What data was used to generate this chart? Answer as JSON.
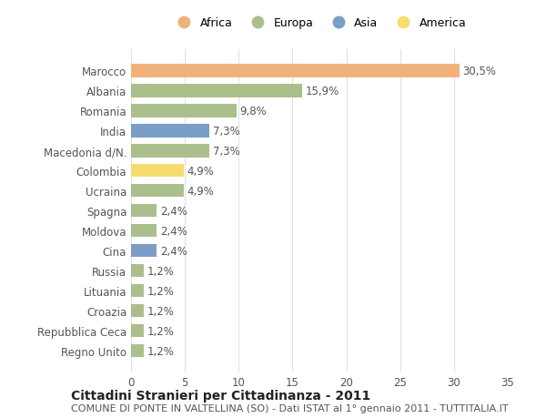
{
  "countries": [
    "Marocco",
    "Albania",
    "Romania",
    "India",
    "Macedonia d/N.",
    "Colombia",
    "Ucraina",
    "Spagna",
    "Moldova",
    "Cina",
    "Russia",
    "Lituania",
    "Croazia",
    "Repubblica Ceca",
    "Regno Unito"
  ],
  "values": [
    30.5,
    15.9,
    9.8,
    7.3,
    7.3,
    4.9,
    4.9,
    2.4,
    2.4,
    2.4,
    1.2,
    1.2,
    1.2,
    1.2,
    1.2
  ],
  "labels": [
    "30,5%",
    "15,9%",
    "9,8%",
    "7,3%",
    "7,3%",
    "4,9%",
    "4,9%",
    "2,4%",
    "2,4%",
    "2,4%",
    "1,2%",
    "1,2%",
    "1,2%",
    "1,2%",
    "1,2%"
  ],
  "continents": [
    "Africa",
    "Europa",
    "Europa",
    "Asia",
    "Europa",
    "America",
    "Europa",
    "Europa",
    "Europa",
    "Asia",
    "Europa",
    "Europa",
    "Europa",
    "Europa",
    "Europa"
  ],
  "colors": {
    "Africa": "#F0B27A",
    "Europa": "#ABBF8C",
    "Asia": "#7B9EC7",
    "America": "#F7DC6F"
  },
  "legend_order": [
    "Africa",
    "Europa",
    "Asia",
    "America"
  ],
  "xlim": [
    0,
    35
  ],
  "xticks": [
    0,
    5,
    10,
    15,
    20,
    25,
    30,
    35
  ],
  "title1": "Cittadini Stranieri per Cittadinanza - 2011",
  "title2": "COMUNE DI PONTE IN VALTELLINA (SO) - Dati ISTAT al 1° gennaio 2011 - TUTTITALIA.IT",
  "bg_color": "#FFFFFF",
  "plot_bg_color": "#FFFFFF",
  "grid_color": "#E0E0E0",
  "bar_height": 0.65,
  "label_fontsize": 8.5,
  "tick_fontsize": 8.5,
  "title1_fontsize": 10,
  "title2_fontsize": 8
}
